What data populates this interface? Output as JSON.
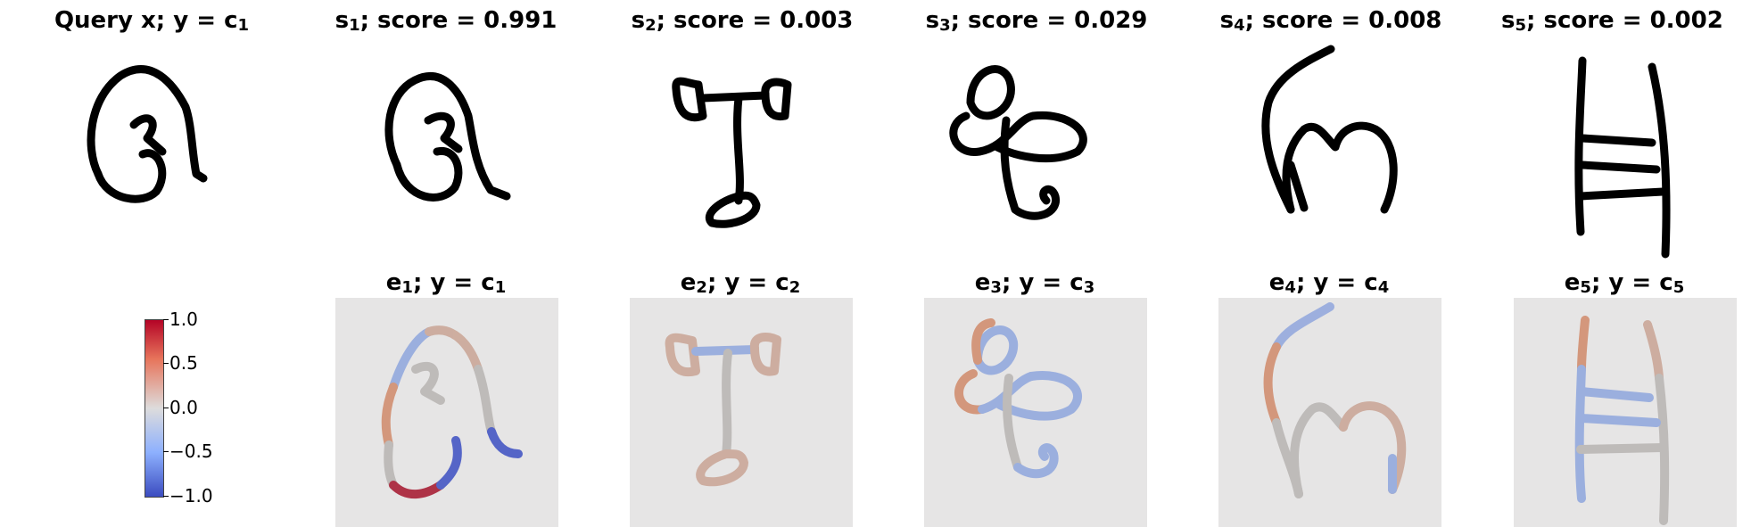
{
  "top_titles": [
    {
      "main": "Query x; y",
      "eq": "=",
      "var": "c",
      "sub": "1"
    },
    {
      "main": "s",
      "sub": "1",
      "rest": "; score = ",
      "score": "0.991"
    },
    {
      "main": "s",
      "sub": "2",
      "rest": "; score = ",
      "score": "0.003"
    },
    {
      "main": "s",
      "sub": "3",
      "rest": "; score = ",
      "score": "0.029"
    },
    {
      "main": "s",
      "sub": "4",
      "rest": "; score = ",
      "score": "0.008"
    },
    {
      "main": "s",
      "sub": "5",
      "rest": "; score = ",
      "score": "0.002"
    }
  ],
  "bottom_titles": [
    {
      "e": "e",
      "esub": "1",
      "mid": "; y",
      "eq": "=",
      "c": "c",
      "csub": "1"
    },
    {
      "e": "e",
      "esub": "2",
      "mid": "; y",
      "eq": "=",
      "c": "c",
      "csub": "2"
    },
    {
      "e": "e",
      "esub": "3",
      "mid": "; y",
      "eq": "=",
      "c": "c",
      "csub": "3"
    },
    {
      "e": "e",
      "esub": "4",
      "mid": "; y",
      "eq": "=",
      "c": "c",
      "csub": "4"
    },
    {
      "e": "e",
      "esub": "5",
      "mid": "; y",
      "eq": "=",
      "c": "c",
      "csub": "5"
    }
  ],
  "colorbar": {
    "ticks": [
      "1.0",
      "0.5",
      "0.0",
      "−0.5",
      "−1.0"
    ],
    "colors": {
      "high": "#b40426",
      "mid": "#dddcdc",
      "low": "#3b4cc0"
    }
  },
  "colors": {
    "stroke": "#000000",
    "panel_bg": "#e6e5e5",
    "neutral_stroke": "#b8b4b2",
    "pos_strong": "#a5152c",
    "pos_mid": "#d08a6a",
    "pos_light": "#c9a494",
    "neg_strong": "#3c4fc2",
    "neg_mid": "#8fa6dd"
  }
}
